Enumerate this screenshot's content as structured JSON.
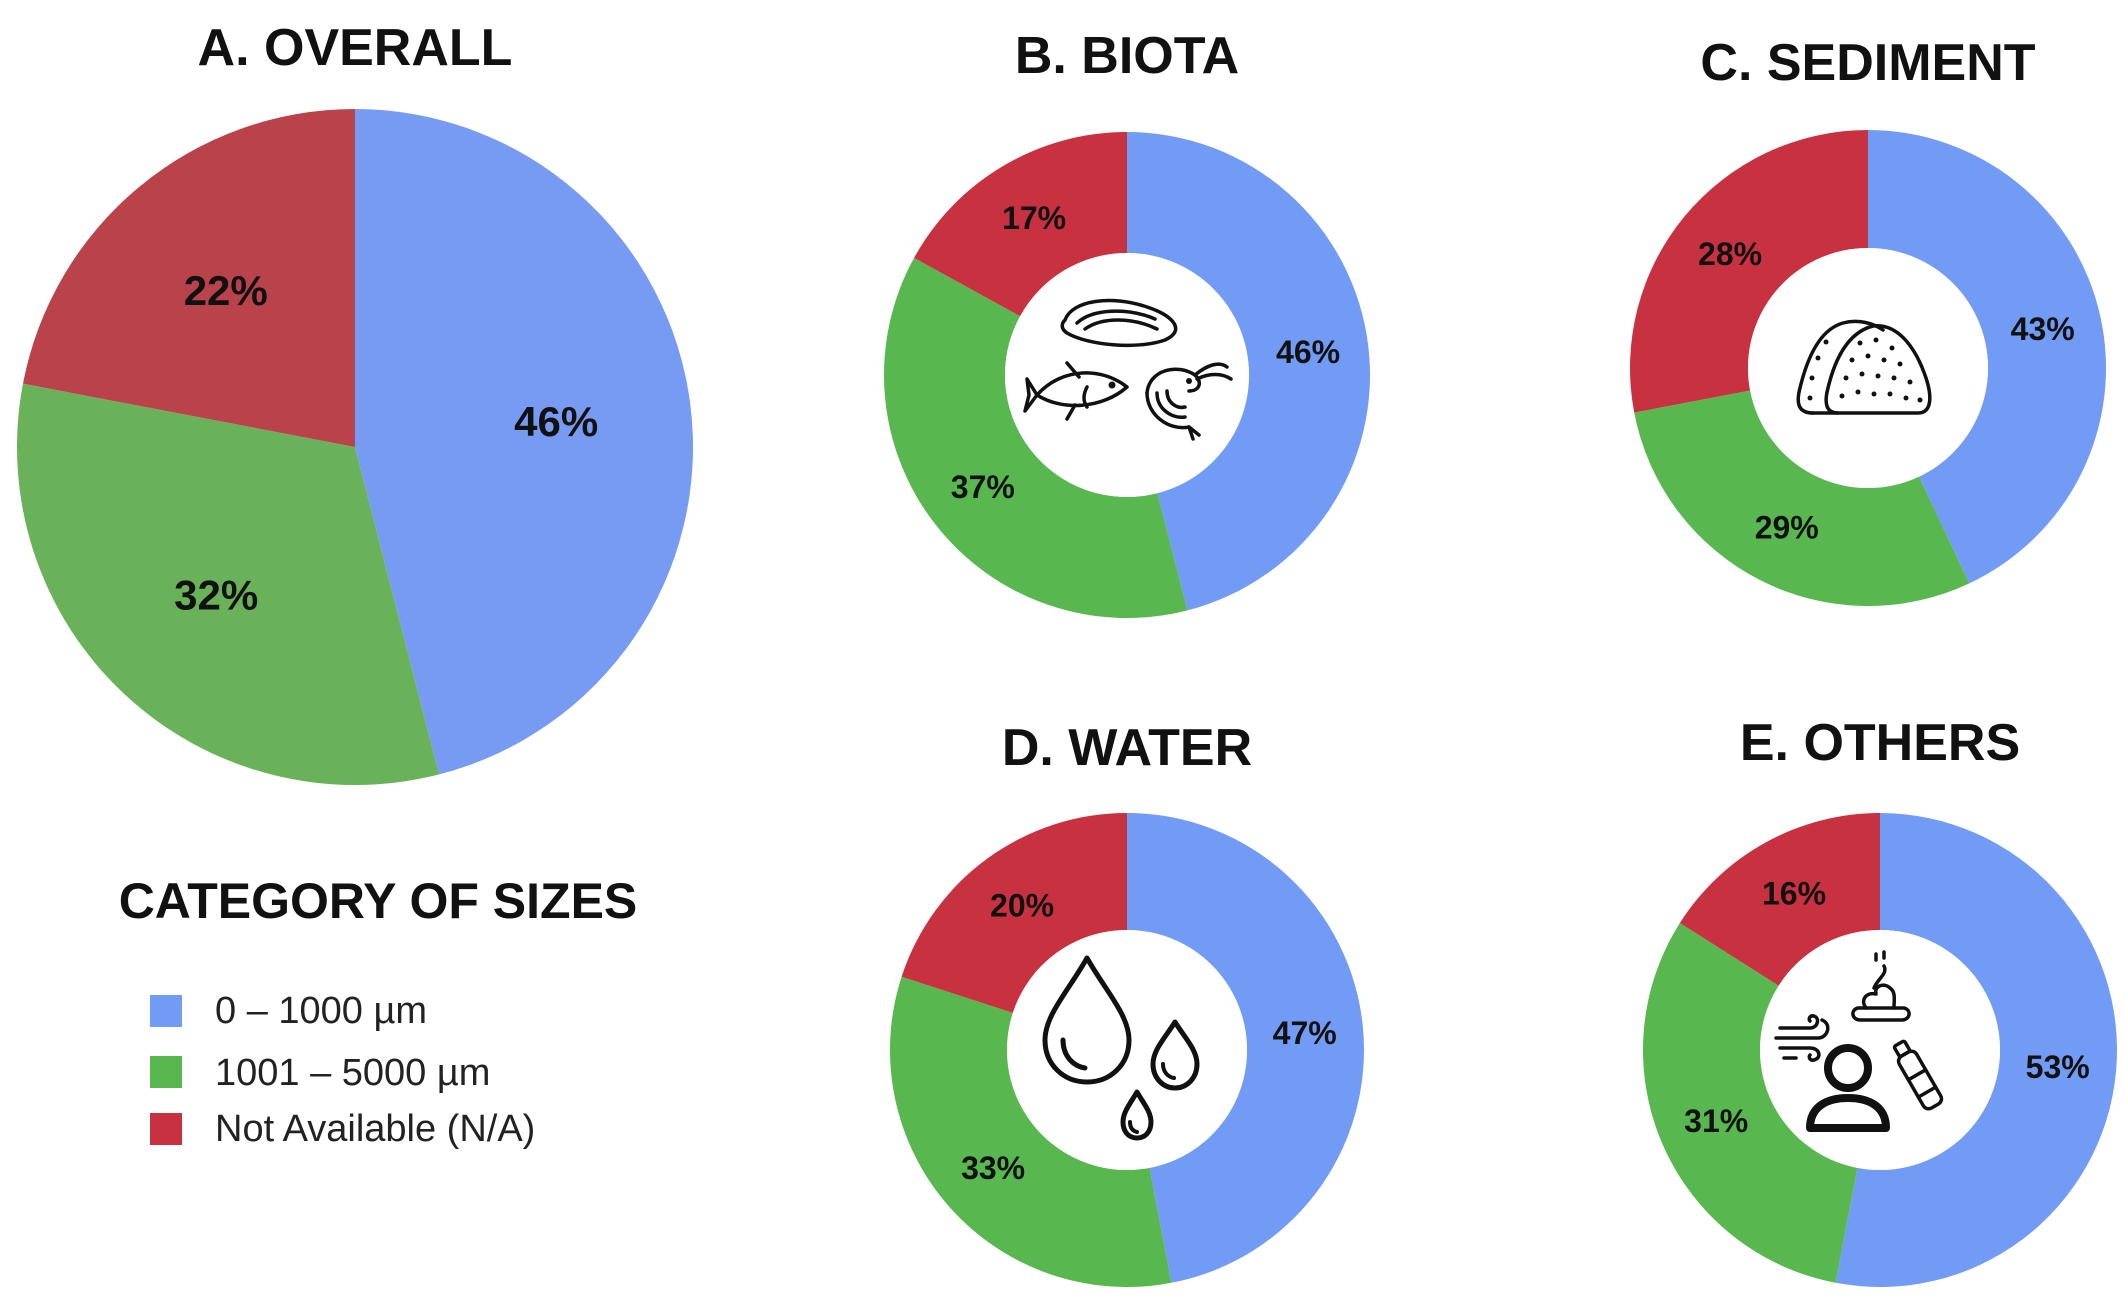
{
  "colors": {
    "size_0_1000": "#779bf2",
    "size_1001_5000": "#6ab25a",
    "size_na": "#b9424b",
    "donut_blue": "#729bf5",
    "donut_green": "#58b84f",
    "donut_red": "#c8313f"
  },
  "legend": {
    "title": "CATEGORY OF SIZES",
    "items": [
      {
        "label": "0 – 1000 µm",
        "color": "#729bf5"
      },
      {
        "label": "1001 – 5000 µm",
        "color": "#58b84f"
      },
      {
        "label": "Not Available (N/A)",
        "color": "#c8313f"
      }
    ]
  },
  "chart_data": [
    {
      "type": "pie",
      "title": "A. OVERALL",
      "categories": [
        "0 – 1000 µm",
        "1001 – 5000 µm",
        "Not Available (N/A)"
      ],
      "values": [
        46,
        32,
        22
      ],
      "labels": [
        "46%",
        "32%",
        "22%"
      ]
    },
    {
      "type": "pie",
      "title": "B. BIOTA",
      "donut": true,
      "icon": "biota-icon",
      "categories": [
        "0 – 1000 µm",
        "1001 – 5000 µm",
        "Not Available (N/A)"
      ],
      "values": [
        46,
        37,
        17
      ],
      "labels": [
        "46%",
        "37%",
        "17%"
      ]
    },
    {
      "type": "pie",
      "title": "C. SEDIMENT",
      "donut": true,
      "icon": "sediment-icon",
      "categories": [
        "0 – 1000 µm",
        "1001 – 5000 µm",
        "Not Available (N/A)"
      ],
      "values": [
        43,
        29,
        28
      ],
      "labels": [
        "43%",
        "29%",
        "28%"
      ]
    },
    {
      "type": "pie",
      "title": "D. WATER",
      "donut": true,
      "icon": "water-drops-icon",
      "categories": [
        "0 – 1000 µm",
        "1001 – 5000 µm",
        "Not Available (N/A)"
      ],
      "values": [
        47,
        33,
        20
      ],
      "labels": [
        "47%",
        "33%",
        "20%"
      ]
    },
    {
      "type": "pie",
      "title": "E. OTHERS",
      "donut": true,
      "icon": "others-icon",
      "categories": [
        "0 – 1000 µm",
        "1001 – 5000 µm",
        "Not Available (N/A)"
      ],
      "values": [
        53,
        31,
        16
      ],
      "labels": [
        "53%",
        "31%",
        "16%"
      ]
    }
  ]
}
